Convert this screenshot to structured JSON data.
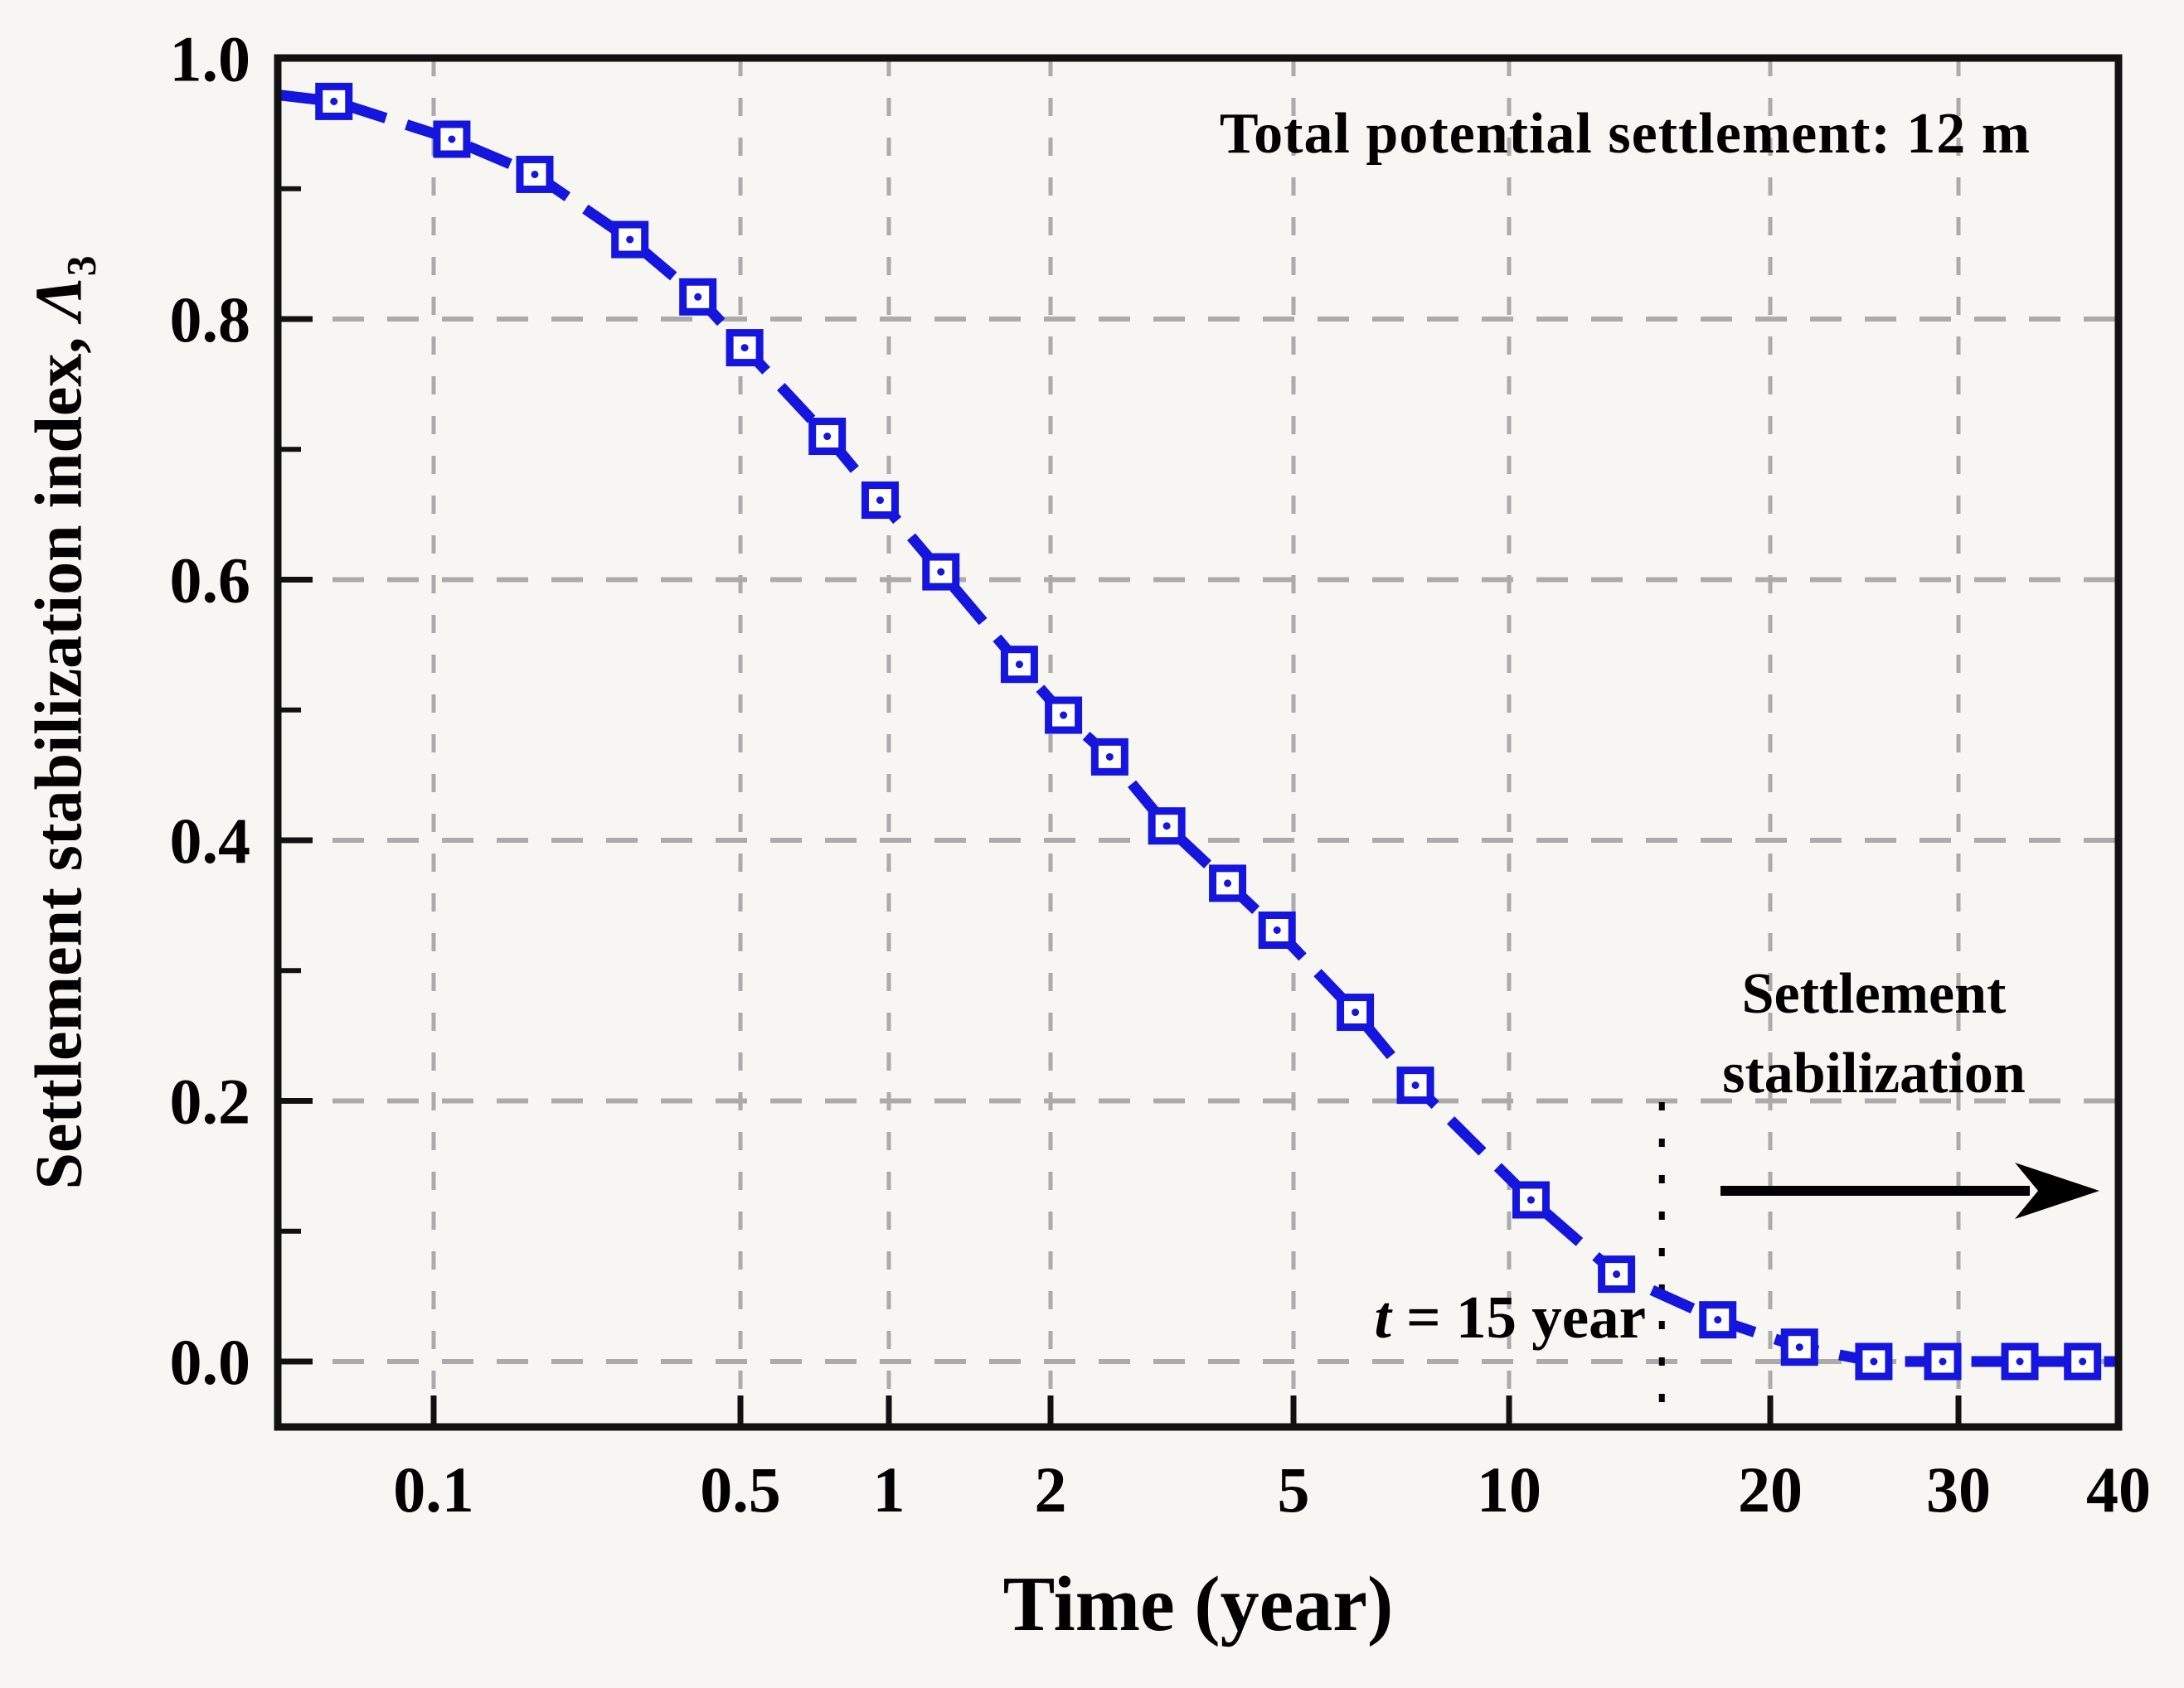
{
  "annotations": {
    "total_settlement": "Total potential settlement: 12 m",
    "stabilization_line1": "Settlement",
    "stabilization_line2": "stabilization",
    "t15_var": "t",
    "t15_rest": " = 15 year"
  },
  "axes": {
    "x_title": "Time (year)",
    "y_title_prefix": "Settlement stabilization index, ",
    "y_title_symbol": "Λ",
    "y_title_subscript": "3"
  },
  "chart_data": {
    "type": "line",
    "title": "",
    "xlabel": "Time (year)",
    "ylabel": "Settlement stabilization index, Λ3",
    "x_scale": "log",
    "xlim": [
      0.045,
      40
    ],
    "ylim": [
      -0.05,
      1.0
    ],
    "grid": true,
    "x_ticks": [
      0.1,
      0.5,
      1,
      2,
      5,
      10,
      20,
      30,
      40
    ],
    "x_tick_labels": [
      "0.1",
      "0.5",
      "1",
      "2",
      "5",
      "10",
      "20",
      "30",
      "40"
    ],
    "x_gridline_values": [
      0.1,
      0.5,
      1,
      2,
      5,
      10,
      20,
      30
    ],
    "y_ticks": [
      0.0,
      0.2,
      0.4,
      0.6,
      0.8,
      1.0
    ],
    "y_tick_labels": [
      "0.0",
      "0.2",
      "0.4",
      "0.6",
      "0.8",
      "1.0"
    ],
    "y_gridline_values": [
      0.0,
      0.2,
      0.4,
      0.6,
      0.8
    ],
    "y_minor_ticks": [
      0.1,
      0.3,
      0.5,
      0.7,
      0.9
    ],
    "series": [
      {
        "name": "Settlement stabilization index",
        "marker": "open-square-with-dot",
        "line_style": "dashed",
        "color": "#1515dd",
        "x": [
          0.06,
          0.11,
          0.17,
          0.28,
          0.4,
          0.51,
          0.75,
          0.96,
          1.25,
          1.75,
          2.1,
          2.5,
          3.1,
          3.9,
          4.7,
          6.1,
          7.4,
          10.6,
          13.3,
          17.4,
          21.3,
          25,
          29,
          33.5,
          37.5
        ],
        "y": [
          0.967,
          0.938,
          0.911,
          0.861,
          0.817,
          0.778,
          0.71,
          0.661,
          0.606,
          0.535,
          0.496,
          0.464,
          0.411,
          0.367,
          0.331,
          0.268,
          0.212,
          0.124,
          0.067,
          0.032,
          0.011,
          0.0,
          0.0,
          0.0,
          0.0
        ]
      }
    ],
    "reference_line": {
      "x_value": 15,
      "style": "dotted-black-vertical"
    },
    "arrow": {
      "direction": "right",
      "y_value": 0.131
    },
    "colors": {
      "series": "#1515dd",
      "grid": "#ababab",
      "axis": "#111111",
      "text": "#000000"
    }
  }
}
